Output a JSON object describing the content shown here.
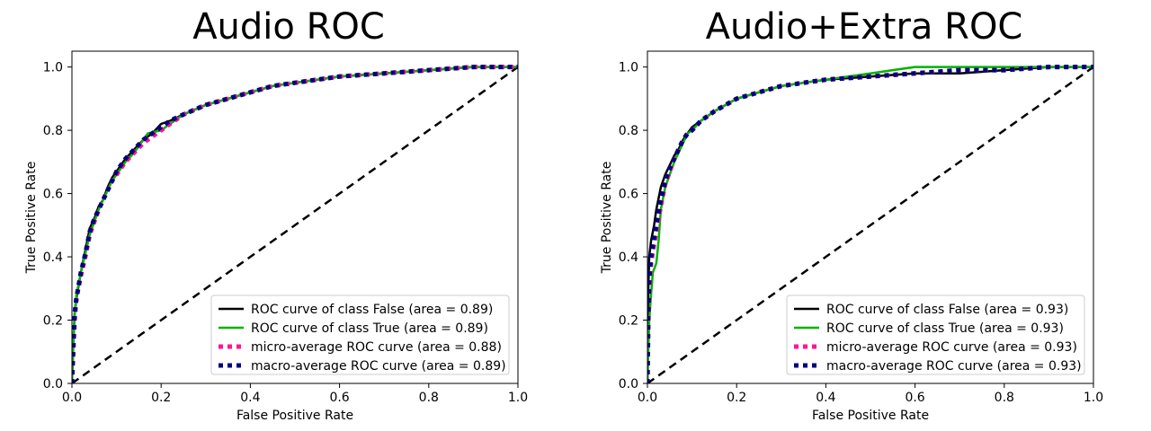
{
  "chart_data": [
    {
      "type": "line",
      "title": "Audio ROC",
      "xlabel": "False Positive Rate",
      "ylabel": "True Positive Rate",
      "xlim": [
        0.0,
        1.0
      ],
      "ylim": [
        0.0,
        1.05
      ],
      "xticks": [
        "0.0",
        "0.2",
        "0.4",
        "0.6",
        "0.8",
        "1.0"
      ],
      "yticks": [
        "0.0",
        "0.2",
        "0.4",
        "0.6",
        "0.8",
        "1.0"
      ],
      "grid": false,
      "legend_position": "lower right",
      "series": [
        {
          "name": "ROC curve of class False (area = 0.89)",
          "color": "#000000",
          "style": "solid",
          "points": [
            [
              0,
              0
            ],
            [
              0.003,
              0.12
            ],
            [
              0.006,
              0.22
            ],
            [
              0.01,
              0.27
            ],
            [
              0.02,
              0.35
            ],
            [
              0.03,
              0.42
            ],
            [
              0.04,
              0.49
            ],
            [
              0.05,
              0.52
            ],
            [
              0.06,
              0.56
            ],
            [
              0.07,
              0.58
            ],
            [
              0.08,
              0.62
            ],
            [
              0.09,
              0.65
            ],
            [
              0.1,
              0.67
            ],
            [
              0.12,
              0.71
            ],
            [
              0.14,
              0.74
            ],
            [
              0.16,
              0.77
            ],
            [
              0.18,
              0.79
            ],
            [
              0.2,
              0.82
            ],
            [
              0.22,
              0.83
            ],
            [
              0.25,
              0.85
            ],
            [
              0.3,
              0.88
            ],
            [
              0.35,
              0.9
            ],
            [
              0.4,
              0.92
            ],
            [
              0.45,
              0.94
            ],
            [
              0.5,
              0.95
            ],
            [
              0.55,
              0.96
            ],
            [
              0.6,
              0.97
            ],
            [
              0.7,
              0.98
            ],
            [
              0.8,
              0.99
            ],
            [
              0.9,
              1.0
            ],
            [
              1.0,
              1.0
            ]
          ]
        },
        {
          "name": "ROC curve of class True (area = 0.89)",
          "color": "#00b400",
          "style": "solid",
          "points": [
            [
              0,
              0
            ],
            [
              0.003,
              0.13
            ],
            [
              0.006,
              0.22
            ],
            [
              0.01,
              0.28
            ],
            [
              0.02,
              0.35
            ],
            [
              0.03,
              0.41
            ],
            [
              0.04,
              0.47
            ],
            [
              0.05,
              0.51
            ],
            [
              0.06,
              0.55
            ],
            [
              0.07,
              0.58
            ],
            [
              0.08,
              0.61
            ],
            [
              0.09,
              0.64
            ],
            [
              0.1,
              0.66
            ],
            [
              0.12,
              0.7
            ],
            [
              0.14,
              0.73
            ],
            [
              0.16,
              0.77
            ],
            [
              0.17,
              0.79
            ],
            [
              0.2,
              0.8
            ],
            [
              0.22,
              0.82
            ],
            [
              0.25,
              0.85
            ],
            [
              0.3,
              0.88
            ],
            [
              0.35,
              0.9
            ],
            [
              0.4,
              0.92
            ],
            [
              0.45,
              0.94
            ],
            [
              0.5,
              0.95
            ],
            [
              0.55,
              0.96
            ],
            [
              0.6,
              0.97
            ],
            [
              0.7,
              0.98
            ],
            [
              0.8,
              0.99
            ],
            [
              0.9,
              1.0
            ],
            [
              1.0,
              1.0
            ]
          ]
        },
        {
          "name": "micro-average ROC curve (area = 0.88)",
          "color": "#ff1493",
          "style": "dotted",
          "points": [
            [
              0,
              0
            ],
            [
              0.003,
              0.1
            ],
            [
              0.006,
              0.2
            ],
            [
              0.01,
              0.27
            ],
            [
              0.02,
              0.34
            ],
            [
              0.03,
              0.4
            ],
            [
              0.04,
              0.47
            ],
            [
              0.05,
              0.51
            ],
            [
              0.06,
              0.55
            ],
            [
              0.07,
              0.58
            ],
            [
              0.08,
              0.61
            ],
            [
              0.09,
              0.64
            ],
            [
              0.1,
              0.66
            ],
            [
              0.12,
              0.7
            ],
            [
              0.14,
              0.73
            ],
            [
              0.16,
              0.76
            ],
            [
              0.18,
              0.78
            ],
            [
              0.2,
              0.8
            ],
            [
              0.22,
              0.82
            ],
            [
              0.25,
              0.85
            ],
            [
              0.3,
              0.88
            ],
            [
              0.35,
              0.9
            ],
            [
              0.4,
              0.92
            ],
            [
              0.45,
              0.94
            ],
            [
              0.5,
              0.95
            ],
            [
              0.55,
              0.96
            ],
            [
              0.6,
              0.97
            ],
            [
              0.7,
              0.98
            ],
            [
              0.8,
              0.99
            ],
            [
              0.9,
              1.0
            ],
            [
              1.0,
              1.0
            ]
          ]
        },
        {
          "name": "macro-average ROC curve (area = 0.89)",
          "color": "#000080",
          "style": "dotted",
          "points": [
            [
              0,
              0
            ],
            [
              0.003,
              0.12
            ],
            [
              0.006,
              0.22
            ],
            [
              0.01,
              0.27
            ],
            [
              0.02,
              0.35
            ],
            [
              0.03,
              0.41
            ],
            [
              0.04,
              0.48
            ],
            [
              0.05,
              0.52
            ],
            [
              0.06,
              0.55
            ],
            [
              0.07,
              0.58
            ],
            [
              0.08,
              0.61
            ],
            [
              0.09,
              0.64
            ],
            [
              0.1,
              0.67
            ],
            [
              0.12,
              0.71
            ],
            [
              0.14,
              0.74
            ],
            [
              0.16,
              0.77
            ],
            [
              0.18,
              0.79
            ],
            [
              0.2,
              0.81
            ],
            [
              0.22,
              0.83
            ],
            [
              0.25,
              0.85
            ],
            [
              0.3,
              0.88
            ],
            [
              0.35,
              0.9
            ],
            [
              0.4,
              0.92
            ],
            [
              0.45,
              0.94
            ],
            [
              0.5,
              0.95
            ],
            [
              0.55,
              0.96
            ],
            [
              0.6,
              0.97
            ],
            [
              0.7,
              0.98
            ],
            [
              0.8,
              0.99
            ],
            [
              0.9,
              1.0
            ],
            [
              1.0,
              1.0
            ]
          ]
        },
        {
          "color": "#000000",
          "style": "dashed",
          "points": [
            [
              0,
              0
            ],
            [
              1,
              1
            ]
          ]
        }
      ]
    },
    {
      "type": "line",
      "title": "Audio+Extra ROC",
      "xlabel": "False Positive Rate",
      "ylabel": "True Positive Rate",
      "xlim": [
        0.0,
        1.0
      ],
      "ylim": [
        0.0,
        1.05
      ],
      "xticks": [
        "0.0",
        "0.2",
        "0.4",
        "0.6",
        "0.8",
        "1.0"
      ],
      "yticks": [
        "0.0",
        "0.2",
        "0.4",
        "0.6",
        "0.8",
        "1.0"
      ],
      "grid": false,
      "legend_position": "lower right",
      "series": [
        {
          "name": "ROC curve of class False (area = 0.93)",
          "color": "#000000",
          "style": "solid",
          "points": [
            [
              0,
              0
            ],
            [
              0.002,
              0.3
            ],
            [
              0.004,
              0.4
            ],
            [
              0.008,
              0.45
            ],
            [
              0.015,
              0.5
            ],
            [
              0.02,
              0.55
            ],
            [
              0.03,
              0.62
            ],
            [
              0.04,
              0.66
            ],
            [
              0.05,
              0.69
            ],
            [
              0.06,
              0.72
            ],
            [
              0.07,
              0.74
            ],
            [
              0.08,
              0.77
            ],
            [
              0.09,
              0.79
            ],
            [
              0.1,
              0.81
            ],
            [
              0.12,
              0.83
            ],
            [
              0.15,
              0.86
            ],
            [
              0.2,
              0.9
            ],
            [
              0.25,
              0.92
            ],
            [
              0.3,
              0.94
            ],
            [
              0.35,
              0.95
            ],
            [
              0.4,
              0.96
            ],
            [
              0.5,
              0.97
            ],
            [
              0.6,
              0.98
            ],
            [
              0.7,
              0.98
            ],
            [
              0.8,
              0.99
            ],
            [
              0.9,
              1.0
            ],
            [
              1.0,
              1.0
            ]
          ]
        },
        {
          "name": "ROC curve of class True (area = 0.93)",
          "color": "#00b400",
          "style": "solid",
          "points": [
            [
              0,
              0
            ],
            [
              0.002,
              0.1
            ],
            [
              0.004,
              0.2
            ],
            [
              0.008,
              0.28
            ],
            [
              0.012,
              0.35
            ],
            [
              0.02,
              0.38
            ],
            [
              0.025,
              0.45
            ],
            [
              0.03,
              0.55
            ],
            [
              0.04,
              0.62
            ],
            [
              0.05,
              0.66
            ],
            [
              0.06,
              0.7
            ],
            [
              0.07,
              0.73
            ],
            [
              0.08,
              0.76
            ],
            [
              0.09,
              0.79
            ],
            [
              0.1,
              0.8
            ],
            [
              0.12,
              0.83
            ],
            [
              0.15,
              0.86
            ],
            [
              0.2,
              0.9
            ],
            [
              0.25,
              0.92
            ],
            [
              0.3,
              0.94
            ],
            [
              0.35,
              0.95
            ],
            [
              0.4,
              0.96
            ],
            [
              0.5,
              0.98
            ],
            [
              0.55,
              0.99
            ],
            [
              0.6,
              1.0
            ],
            [
              0.8,
              1.0
            ],
            [
              1.0,
              1.0
            ]
          ]
        },
        {
          "name": "micro-average ROC curve (area = 0.93)",
          "color": "#ff1493",
          "style": "dotted",
          "points": [
            [
              0,
              0
            ],
            [
              0.002,
              0.2
            ],
            [
              0.004,
              0.3
            ],
            [
              0.008,
              0.38
            ],
            [
              0.015,
              0.44
            ],
            [
              0.02,
              0.48
            ],
            [
              0.03,
              0.56
            ],
            [
              0.04,
              0.63
            ],
            [
              0.05,
              0.67
            ],
            [
              0.06,
              0.71
            ],
            [
              0.07,
              0.74
            ],
            [
              0.08,
              0.77
            ],
            [
              0.09,
              0.79
            ],
            [
              0.1,
              0.8
            ],
            [
              0.12,
              0.83
            ],
            [
              0.15,
              0.86
            ],
            [
              0.2,
              0.9
            ],
            [
              0.25,
              0.92
            ],
            [
              0.3,
              0.94
            ],
            [
              0.35,
              0.95
            ],
            [
              0.4,
              0.96
            ],
            [
              0.5,
              0.97
            ],
            [
              0.6,
              0.98
            ],
            [
              0.7,
              0.99
            ],
            [
              0.8,
              0.99
            ],
            [
              0.9,
              1.0
            ],
            [
              1.0,
              1.0
            ]
          ]
        },
        {
          "name": "macro-average ROC curve (area = 0.93)",
          "color": "#000080",
          "style": "dotted",
          "points": [
            [
              0,
              0
            ],
            [
              0.002,
              0.22
            ],
            [
              0.004,
              0.33
            ],
            [
              0.008,
              0.4
            ],
            [
              0.015,
              0.46
            ],
            [
              0.02,
              0.5
            ],
            [
              0.03,
              0.58
            ],
            [
              0.04,
              0.64
            ],
            [
              0.05,
              0.68
            ],
            [
              0.06,
              0.71
            ],
            [
              0.07,
              0.74
            ],
            [
              0.08,
              0.77
            ],
            [
              0.09,
              0.79
            ],
            [
              0.1,
              0.8
            ],
            [
              0.12,
              0.83
            ],
            [
              0.15,
              0.86
            ],
            [
              0.2,
              0.9
            ],
            [
              0.25,
              0.92
            ],
            [
              0.3,
              0.94
            ],
            [
              0.35,
              0.95
            ],
            [
              0.4,
              0.96
            ],
            [
              0.5,
              0.97
            ],
            [
              0.6,
              0.98
            ],
            [
              0.7,
              0.99
            ],
            [
              0.8,
              0.99
            ],
            [
              0.9,
              1.0
            ],
            [
              1.0,
              1.0
            ]
          ]
        },
        {
          "color": "#000000",
          "style": "dashed",
          "points": [
            [
              0,
              0
            ],
            [
              1,
              1
            ]
          ]
        }
      ]
    }
  ]
}
